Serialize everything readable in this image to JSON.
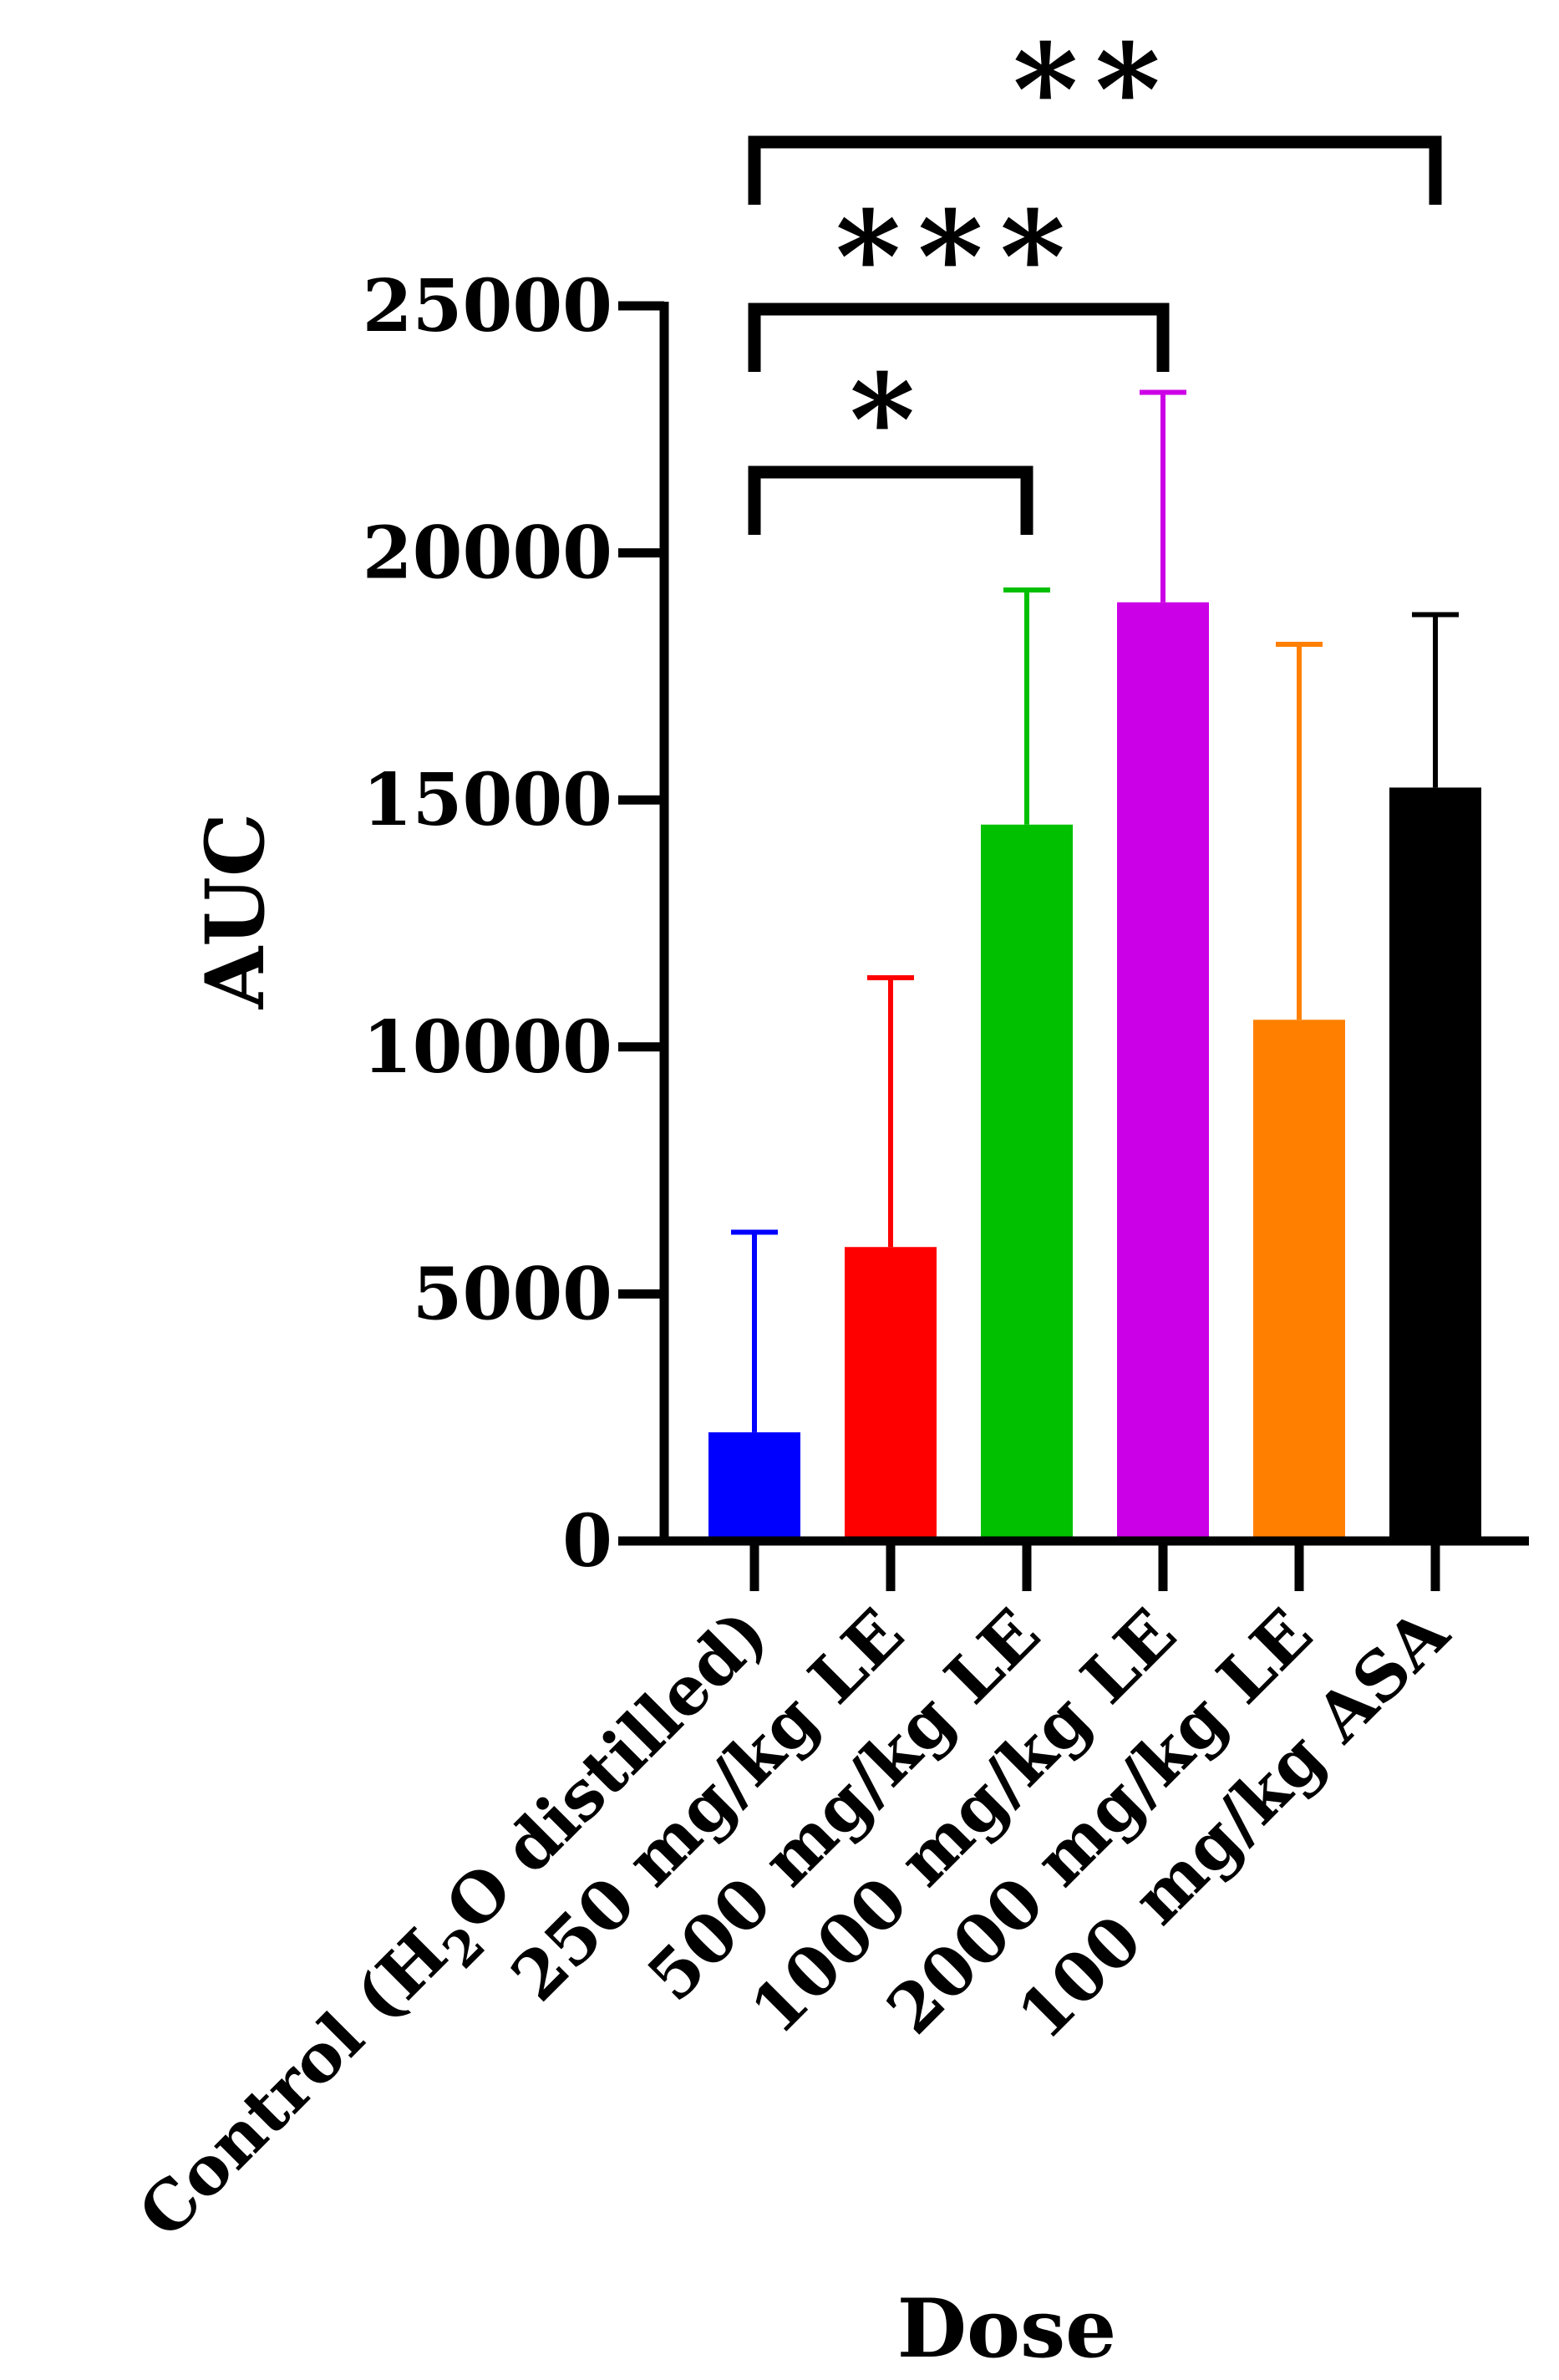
{
  "chart_data": {
    "type": "bar",
    "title": "",
    "xlabel": "Dose",
    "ylabel": "AUC",
    "ylim": [
      0,
      25000
    ],
    "yticks": [
      0,
      5000,
      10000,
      15000,
      20000,
      25000
    ],
    "ytick_labels": [
      "0",
      "5000",
      "10000",
      "15000",
      "20000",
      "25000"
    ],
    "grid": false,
    "categories": [
      "Control (H2O distilled)",
      "250 mg/kg LE",
      "500 mg/kg LE",
      "1000 mg/kg LE",
      "2000 mg/kg LE",
      "100 mg/kg ASA"
    ],
    "control_label": {
      "prefix": "Control (H",
      "subscript": "2",
      "suffix": "O distilled)"
    },
    "values": [
      2200,
      5950,
      14500,
      19000,
      10550,
      15250
    ],
    "error_upper": [
      6250,
      11400,
      19250,
      23250,
      18150,
      18750
    ],
    "colors": [
      "#0000ff",
      "#ff0000",
      "#00c000",
      "#cc00e6",
      "#ff8000",
      "#000000"
    ],
    "significance": [
      {
        "from": 0,
        "to": 2,
        "label": "*"
      },
      {
        "from": 0,
        "to": 3,
        "label": "***"
      },
      {
        "from": 0,
        "to": 5,
        "label": "**"
      }
    ]
  }
}
